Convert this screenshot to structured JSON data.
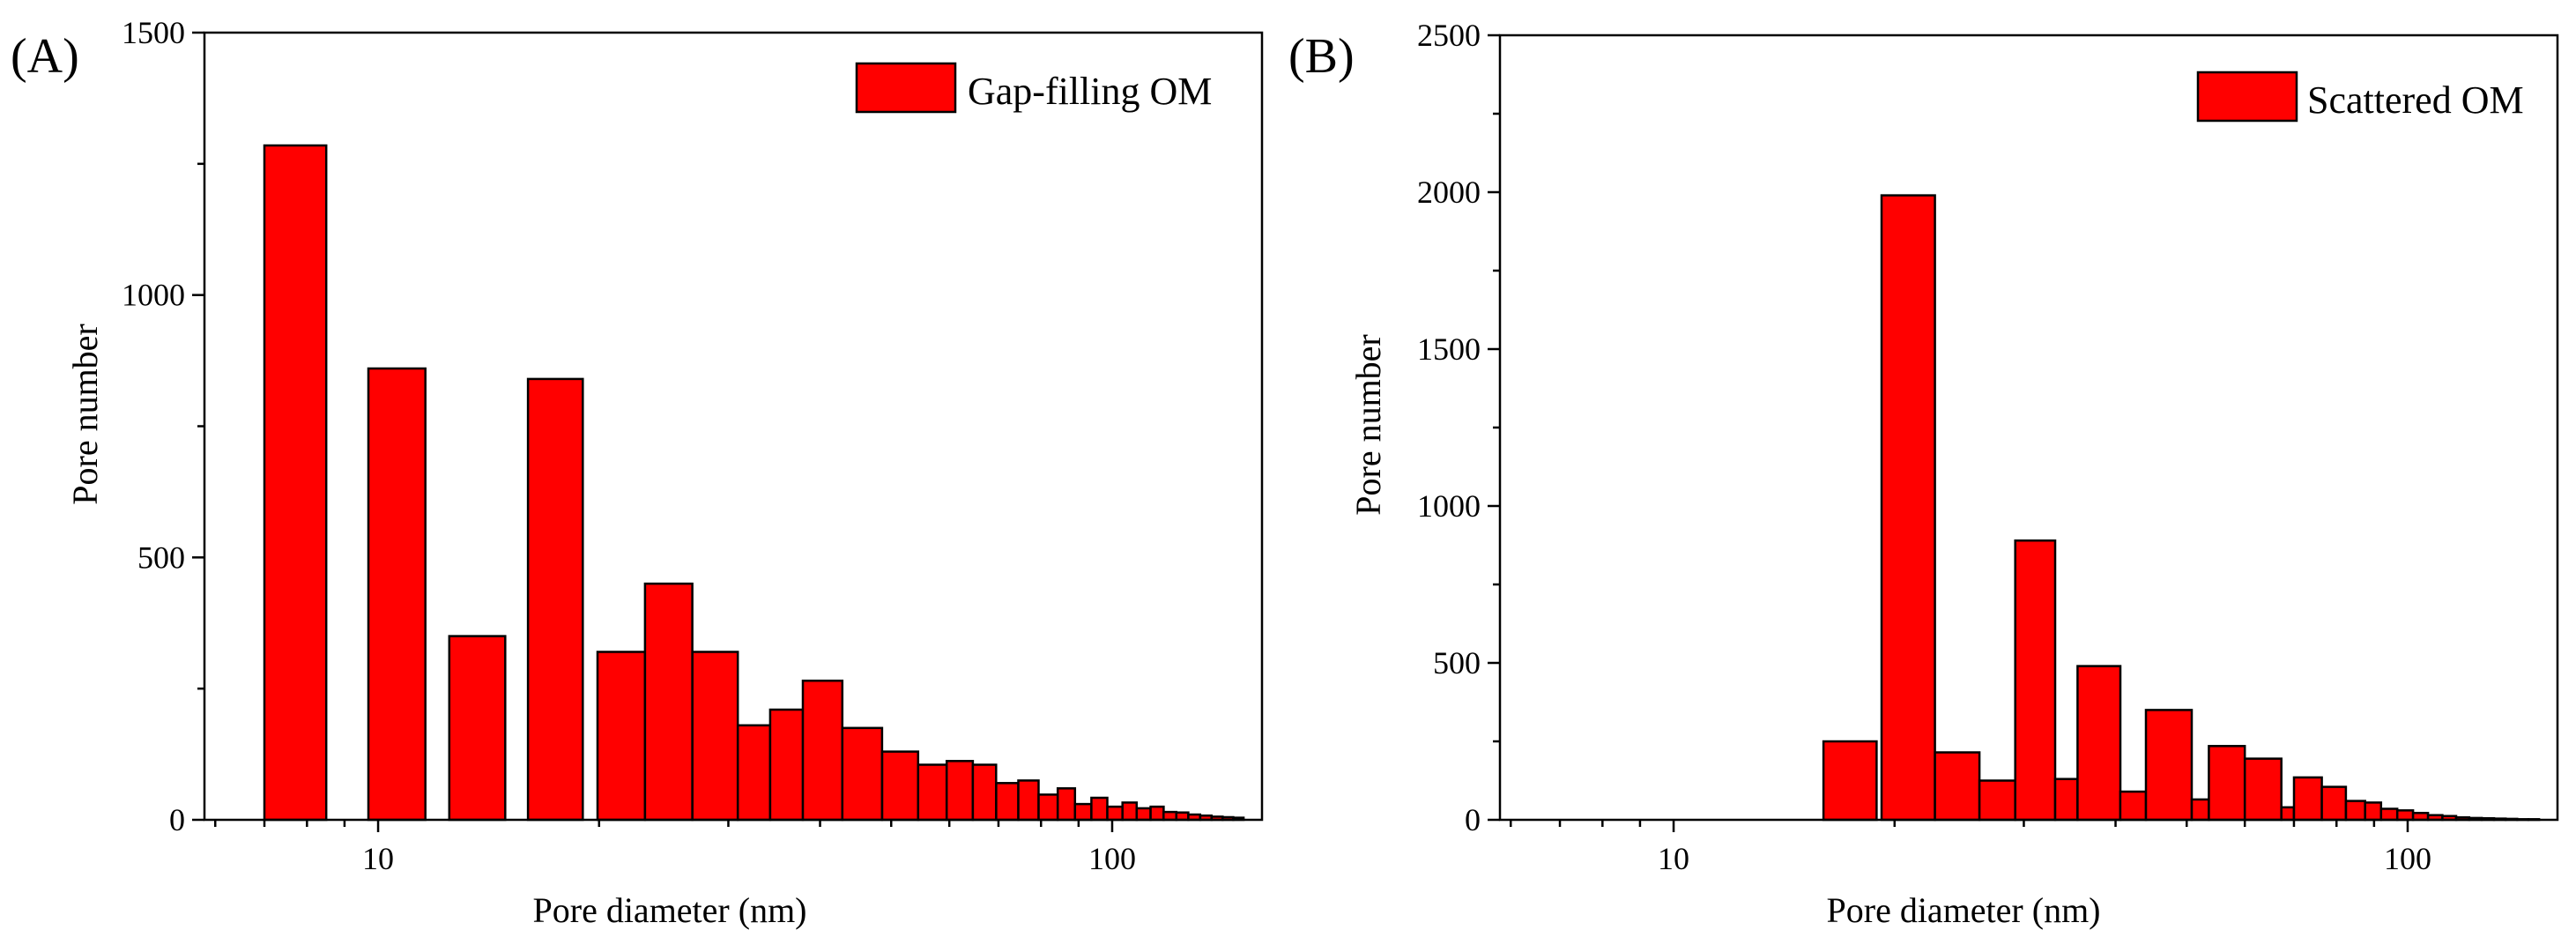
{
  "chart_data": [
    {
      "type": "bar",
      "panel_label": "(A)",
      "title": "",
      "xlabel": "Pore diameter (nm)",
      "ylabel": "Pore number",
      "x_scale": "log",
      "xlim": [
        5.8,
        160
      ],
      "ylim": [
        0,
        1500
      ],
      "x_ticks": [
        10,
        100
      ],
      "x_tick_labels": [
        "10",
        "100"
      ],
      "y_ticks": [
        0,
        500,
        1000,
        1500
      ],
      "y_tick_labels": [
        "0",
        "500",
        "1000",
        "1500"
      ],
      "legend": {
        "label": "Gap-filling OM",
        "position": "top-right",
        "color": "#ff0000"
      },
      "bar_color": "#ff0000",
      "bins": [
        {
          "x0": 7.0,
          "x1": 8.5,
          "value": 1285
        },
        {
          "x0": 9.7,
          "x1": 11.6,
          "value": 860
        },
        {
          "x0": 12.5,
          "x1": 14.9,
          "value": 350
        },
        {
          "x0": 16.0,
          "x1": 19.0,
          "value": 840
        },
        {
          "x0": 19.9,
          "x1": 23.1,
          "value": 320
        },
        {
          "x0": 23.1,
          "x1": 26.8,
          "value": 450
        },
        {
          "x0": 26.8,
          "x1": 30.9,
          "value": 320
        },
        {
          "x0": 30.9,
          "x1": 34.2,
          "value": 180
        },
        {
          "x0": 34.2,
          "x1": 37.9,
          "value": 210
        },
        {
          "x0": 37.9,
          "x1": 42.9,
          "value": 265
        },
        {
          "x0": 42.9,
          "x1": 48.6,
          "value": 175
        },
        {
          "x0": 48.6,
          "x1": 54.4,
          "value": 130
        },
        {
          "x0": 54.4,
          "x1": 59.5,
          "value": 105
        },
        {
          "x0": 59.5,
          "x1": 64.6,
          "value": 112
        },
        {
          "x0": 64.6,
          "x1": 69.5,
          "value": 105
        },
        {
          "x0": 69.5,
          "x1": 74.5,
          "value": 70
        },
        {
          "x0": 74.5,
          "x1": 79.4,
          "value": 75
        },
        {
          "x0": 79.4,
          "x1": 84.3,
          "value": 48
        },
        {
          "x0": 84.3,
          "x1": 89.0,
          "value": 60
        },
        {
          "x0": 89.0,
          "x1": 93.7,
          "value": 30
        },
        {
          "x0": 93.7,
          "x1": 98.5,
          "value": 42
        },
        {
          "x0": 98.5,
          "x1": 103.3,
          "value": 25
        },
        {
          "x0": 103.3,
          "x1": 108.0,
          "value": 33
        },
        {
          "x0": 108.0,
          "x1": 112.8,
          "value": 22
        },
        {
          "x0": 112.8,
          "x1": 117.5,
          "value": 25
        },
        {
          "x0": 117.5,
          "x1": 122.3,
          "value": 15
        },
        {
          "x0": 122.3,
          "x1": 127.0,
          "value": 14
        },
        {
          "x0": 127.0,
          "x1": 131.8,
          "value": 10
        },
        {
          "x0": 131.8,
          "x1": 136.6,
          "value": 8
        },
        {
          "x0": 136.6,
          "x1": 141.4,
          "value": 6
        },
        {
          "x0": 141.4,
          "x1": 146.2,
          "value": 5
        },
        {
          "x0": 146.2,
          "x1": 151.0,
          "value": 4
        }
      ]
    },
    {
      "type": "bar",
      "panel_label": "(B)",
      "title": "",
      "xlabel": "Pore diameter (nm)",
      "ylabel": "Pore number",
      "x_scale": "log",
      "xlim": [
        5.8,
        160
      ],
      "ylim": [
        0,
        2500
      ],
      "x_ticks": [
        10,
        100
      ],
      "x_tick_labels": [
        "10",
        "100"
      ],
      "y_ticks": [
        0,
        500,
        1000,
        1500,
        2000,
        2500
      ],
      "y_tick_labels": [
        "0",
        "500",
        "1000",
        "1500",
        "2000",
        "2500"
      ],
      "legend": {
        "label": "Scattered OM",
        "position": "top-right",
        "color": "#ff0000"
      },
      "bar_color": "#ff0000",
      "bins": [
        {
          "x0": 16.0,
          "x1": 18.9,
          "value": 250
        },
        {
          "x0": 19.2,
          "x1": 22.7,
          "value": 1990
        },
        {
          "x0": 22.7,
          "x1": 26.1,
          "value": 215
        },
        {
          "x0": 26.1,
          "x1": 29.2,
          "value": 125
        },
        {
          "x0": 29.2,
          "x1": 33.1,
          "value": 890
        },
        {
          "x0": 33.1,
          "x1": 35.5,
          "value": 130
        },
        {
          "x0": 35.5,
          "x1": 40.6,
          "value": 490
        },
        {
          "x0": 40.6,
          "x1": 44.0,
          "value": 90
        },
        {
          "x0": 44.0,
          "x1": 50.8,
          "value": 350
        },
        {
          "x0": 50.8,
          "x1": 53.6,
          "value": 65
        },
        {
          "x0": 53.6,
          "x1": 60.0,
          "value": 235
        },
        {
          "x0": 60.0,
          "x1": 67.3,
          "value": 195
        },
        {
          "x0": 67.3,
          "x1": 70.0,
          "value": 40
        },
        {
          "x0": 70.0,
          "x1": 76.4,
          "value": 135
        },
        {
          "x0": 76.4,
          "x1": 82.4,
          "value": 105
        },
        {
          "x0": 82.4,
          "x1": 87.5,
          "value": 60
        },
        {
          "x0": 87.5,
          "x1": 92.0,
          "value": 55
        },
        {
          "x0": 92.0,
          "x1": 96.8,
          "value": 35
        },
        {
          "x0": 96.8,
          "x1": 101.7,
          "value": 30
        },
        {
          "x0": 101.7,
          "x1": 106.6,
          "value": 22
        },
        {
          "x0": 106.6,
          "x1": 111.5,
          "value": 15
        },
        {
          "x0": 111.5,
          "x1": 116.4,
          "value": 12
        },
        {
          "x0": 116.4,
          "x1": 121.3,
          "value": 8
        },
        {
          "x0": 121.3,
          "x1": 126.2,
          "value": 6
        },
        {
          "x0": 126.2,
          "x1": 131.1,
          "value": 5
        },
        {
          "x0": 131.1,
          "x1": 136.0,
          "value": 4
        },
        {
          "x0": 136.0,
          "x1": 141.0,
          "value": 3
        },
        {
          "x0": 141.0,
          "x1": 146.0,
          "value": 2
        },
        {
          "x0": 146.0,
          "x1": 151.0,
          "value": 2
        }
      ]
    }
  ]
}
